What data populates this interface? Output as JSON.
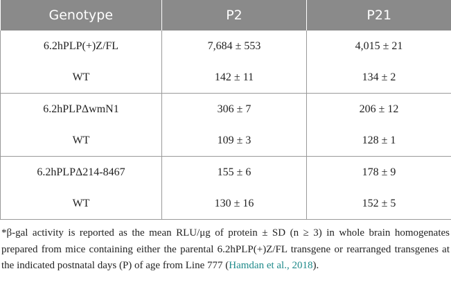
{
  "table": {
    "header": [
      "Genotype",
      "P2",
      "P21"
    ],
    "groups": [
      {
        "rows": [
          [
            "6.2hPLP(+)Z/FL",
            "7,684 ± 553",
            "4,015 ± 21"
          ],
          [
            "WT",
            "142 ± 11",
            "134 ± 2"
          ]
        ]
      },
      {
        "rows": [
          [
            "6.2hPLPΔwmN1",
            "306 ± 7",
            "206 ± 12"
          ],
          [
            "WT",
            "109 ± 3",
            "128 ± 1"
          ]
        ]
      },
      {
        "rows": [
          [
            "6.2hPLPΔ214-8467",
            "155 ± 6",
            "178 ± 9"
          ],
          [
            "WT",
            "130 ± 16",
            "152 ± 5"
          ]
        ]
      }
    ]
  },
  "footnote": {
    "text": "*β-gal activity is reported as the mean RLU/μg of protein ± SD (n ≥ 3) in whole brain homogenates prepared from mice containing either the parental 6.2hPLP(+)Z/FL transgene or rearranged transgenes at the indicated postnatal days (P) of age from Line 777 (",
    "citation": "Hamdan et al., 2018",
    "end": ")."
  }
}
